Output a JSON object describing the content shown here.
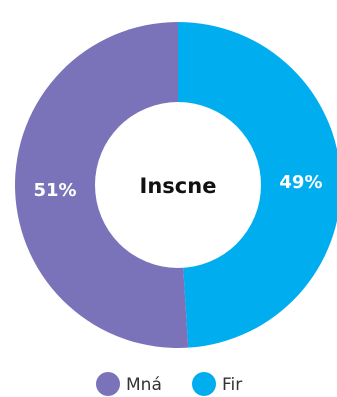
{
  "chart_data": {
    "type": "pie",
    "variant": "donut",
    "center_text": "Inscne",
    "slices": [
      {
        "name": "Fir",
        "value": 49,
        "label": "49%",
        "color": "#00AEEF"
      },
      {
        "name": "Mná",
        "value": 51,
        "label": "51%",
        "color": "#7B73B9"
      }
    ],
    "legend": {
      "placement": "bottom",
      "order": [
        "Mná",
        "Fir"
      ]
    }
  }
}
